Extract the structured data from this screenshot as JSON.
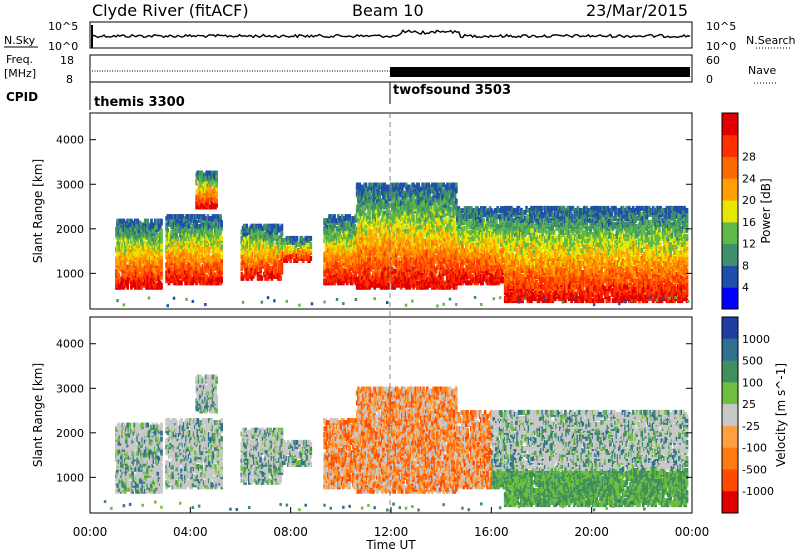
{
  "header": {
    "station": "Clyde River (fitACF)",
    "beam": "Beam 10",
    "date": "23/Mar/2015"
  },
  "labels": {
    "nsky": "N.Sky",
    "nsearch": "N.Search",
    "freq_line1": "Freq.",
    "freq_line2": "[MHz]",
    "nave": "Nave",
    "cpid": "CPID"
  },
  "noise_panel": {
    "left_ticks": [
      "10^5",
      "10^0"
    ],
    "right_ticks": [
      "10^5",
      "10^0"
    ]
  },
  "freq_panel": {
    "left_ticks": [
      "18",
      "8"
    ],
    "right_ticks": [
      "60",
      "0"
    ]
  },
  "cpid_segments": [
    {
      "name": "themis 3300",
      "start_hour": 0
    },
    {
      "name": "twofsound 3503",
      "start_hour": 12
    }
  ],
  "colors": {
    "power_scale": [
      "#0000ff",
      "#1f4faa",
      "#3f8f6a",
      "#5fb84a",
      "#e6e600",
      "#ffa000",
      "#ff6a00",
      "#ff3000",
      "#e00000"
    ],
    "velocity_scale": [
      "#1f3fa0",
      "#2f6f8f",
      "#3f8f5f",
      "#6fbf3f",
      "#c8c8c8",
      "#ffa040",
      "#ff7a10",
      "#ff4a00",
      "#e00000"
    ]
  },
  "chart_data": [
    {
      "type": "heatmap",
      "name": "power",
      "xlabel": "",
      "ylabel": "Slant Range [km]",
      "xlim": [
        0,
        24
      ],
      "ylim": [
        200,
        4600
      ],
      "y_ticks": [
        1000,
        2000,
        3000,
        4000
      ],
      "colorbar_label": "Power [dB]",
      "colorbar_ticks": [
        "4",
        "8",
        "12",
        "16",
        "20",
        "24",
        "28"
      ]
    },
    {
      "type": "heatmap",
      "name": "velocity",
      "xlabel": "Time UT",
      "ylabel": "Slant Range [km]",
      "xlim": [
        0,
        24
      ],
      "ylim": [
        200,
        4600
      ],
      "y_ticks": [
        1000,
        2000,
        3000,
        4000
      ],
      "x_ticks": [
        "00:00",
        "04:00",
        "08:00",
        "12:00",
        "16:00",
        "20:00",
        "00:00"
      ],
      "colorbar_label": "Velocity [m s^-1]",
      "colorbar_ticks": [
        "1000",
        "500",
        "100",
        "25",
        "-25",
        "-100",
        "-500",
        "-1000"
      ]
    }
  ]
}
